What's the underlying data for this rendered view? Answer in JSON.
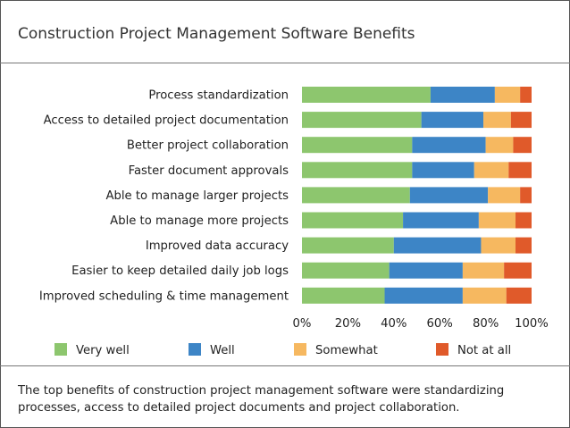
{
  "header": {
    "title": "Construction Project Management Software Benefits"
  },
  "footer": {
    "caption": "The top benefits of construction project management software were standardizing processes, access to detailed project documents and project collaboration."
  },
  "chart_data": {
    "type": "bar",
    "orientation": "horizontal",
    "stacked": true,
    "title": "Construction Project Management Software Benefits",
    "categories": [
      "Process standardization",
      "Access to detailed project documentation",
      "Better project collaboration",
      "Faster document approvals",
      "Able to manage larger projects",
      "Able to manage more projects",
      "Improved data accuracy",
      "Easier to keep detailed daily job logs",
      "Improved scheduling & time management"
    ],
    "series": [
      {
        "name": "Very well",
        "color": "#8dc66e",
        "values": [
          56,
          52,
          48,
          48,
          47,
          44,
          40,
          38,
          36
        ]
      },
      {
        "name": "Well",
        "color": "#3d85c6",
        "values": [
          28,
          27,
          32,
          27,
          34,
          33,
          38,
          32,
          34
        ]
      },
      {
        "name": "Somewhat",
        "color": "#f6b860",
        "values": [
          11,
          12,
          12,
          15,
          14,
          16,
          15,
          18,
          19
        ]
      },
      {
        "name": "Not at all",
        "color": "#e05a2a",
        "values": [
          5,
          9,
          8,
          10,
          5,
          7,
          7,
          12,
          11
        ]
      }
    ],
    "xlim": [
      0,
      100
    ],
    "xticks": [
      "0%",
      "20%",
      "40%",
      "60%",
      "80%",
      "100%"
    ],
    "grid": false,
    "legend_position": "bottom"
  }
}
